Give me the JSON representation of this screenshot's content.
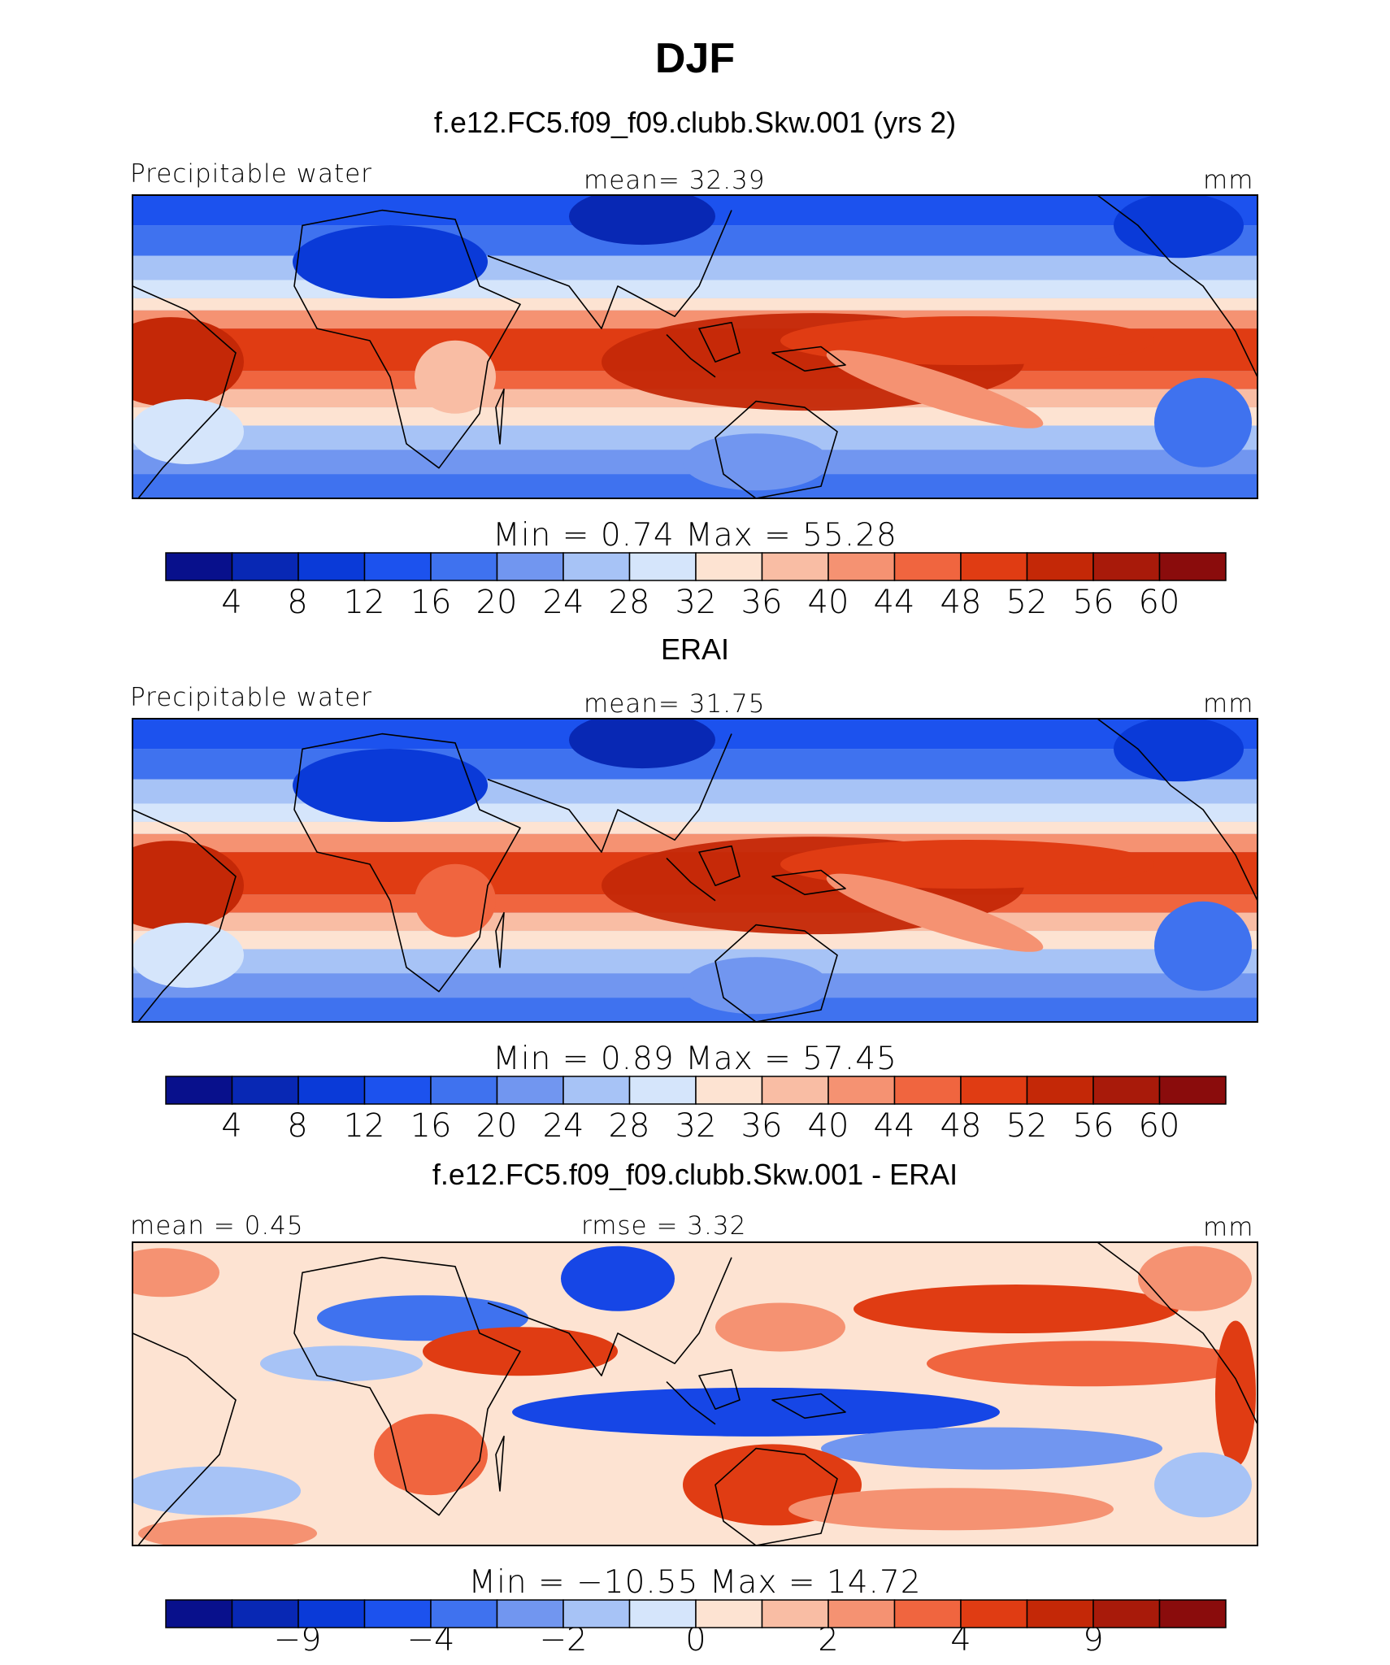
{
  "page": {
    "title": "DJF"
  },
  "colors": {
    "full_palette": [
      "#08108c",
      "#0828b4",
      "#0a3ad8",
      "#1c52ee",
      "#3f72ef",
      "#7196f0",
      "#a7c3f6",
      "#d5e5fb",
      "#fde3d2",
      "#f9bda4",
      "#f59272",
      "#f0653f",
      "#e03c13",
      "#c42807",
      "#a81a0a",
      "#8a0c0c"
    ],
    "diff_palette": [
      "#08108c",
      "#0a2fbe",
      "#1646e6",
      "#3f72ef",
      "#7196f0",
      "#a7c3f6",
      "#d5e5fb",
      "#fde3d2",
      "#f9bda4",
      "#f59272",
      "#f0653f",
      "#e03c13",
      "#b91c0b",
      "#8a0c0c"
    ]
  },
  "chart_data": [
    {
      "type": "heatmap",
      "title": "f.e12.FC5.f09_f09.clubb.Skw.001 (yrs 2)",
      "variable": "Precipitable water",
      "mean_text": "mean=   32.39",
      "units": "mm",
      "min_max_text": "Min  =    0.74  Max  =   55.28",
      "min": 0.74,
      "max": 55.28,
      "mean": 32.39,
      "colorbar_ticks": [
        "4",
        "8",
        "12",
        "16",
        "20",
        "24",
        "28",
        "32",
        "36",
        "40",
        "44",
        "48",
        "52",
        "56",
        "60"
      ]
    },
    {
      "type": "heatmap",
      "title": "ERAI",
      "variable": "Precipitable water",
      "mean_text": "mean=   31.75",
      "units": "mm",
      "min_max_text": "Min  =    0.89  Max  =   57.45",
      "min": 0.89,
      "max": 57.45,
      "mean": 31.75,
      "colorbar_ticks": [
        "4",
        "8",
        "12",
        "16",
        "20",
        "24",
        "28",
        "32",
        "36",
        "40",
        "44",
        "48",
        "52",
        "56",
        "60"
      ]
    },
    {
      "type": "heatmap",
      "title": "f.e12.FC5.f09_f09.clubb.Skw.001 - ERAI",
      "mean_text": "mean  =    0.45",
      "rmse_text": "rmse  =    3.32",
      "units": "mm",
      "min_max_text": "Min  = −10.55  Max  =   14.72",
      "min": -10.55,
      "max": 14.72,
      "mean": 0.45,
      "rmse": 3.32,
      "colorbar_ticks": [
        "−9",
        "−4",
        "−2",
        "0",
        "2",
        "4",
        "9"
      ]
    }
  ]
}
